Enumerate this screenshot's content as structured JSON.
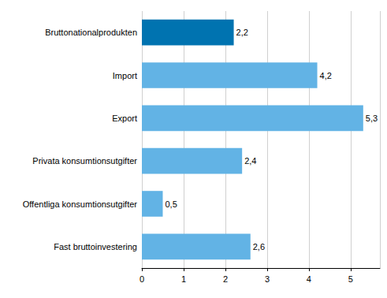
{
  "chart_data": {
    "type": "bar",
    "orientation": "horizontal",
    "categories": [
      "Bruttonationalprodukten",
      "Import",
      "Export",
      "Privata konsumtionsutgifter",
      "Offentliga konsumtionsutgifter",
      "Fast bruttoinvestering"
    ],
    "values": [
      2.2,
      4.2,
      5.3,
      2.4,
      0.5,
      2.6
    ],
    "value_labels": [
      "2,2",
      "4,2",
      "5,3",
      "2,4",
      "0,5",
      "2,6"
    ],
    "colors": [
      "#0073b0",
      "#62b3e5",
      "#62b3e5",
      "#62b3e5",
      "#62b3e5",
      "#62b3e5"
    ],
    "xlim": [
      0,
      5.7
    ],
    "xticks": [
      0,
      1,
      2,
      3,
      4,
      5
    ],
    "grid": true,
    "data_labels": true
  }
}
